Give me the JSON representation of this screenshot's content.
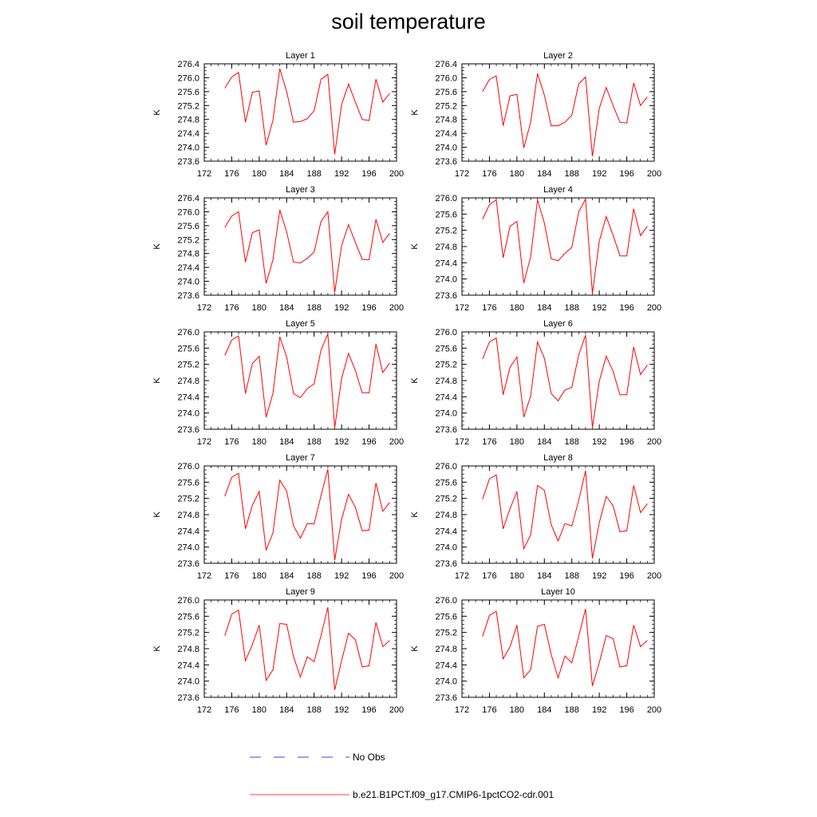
{
  "title": "soil temperature",
  "legend": [
    {
      "label": "No Obs",
      "color": "#0000ff",
      "style": "dashed"
    },
    {
      "label": "b.e21.B1PCT.f09_g17.CMIP6-1pctCO2-cdr.001",
      "color": "#ff0000",
      "style": "solid"
    }
  ],
  "chart_data": [
    {
      "type": "line",
      "title": "Layer 1",
      "ylabel": "K",
      "xlim": [
        172,
        200
      ],
      "ylim": [
        273.6,
        276.4
      ],
      "xticks": [
        172,
        176,
        180,
        184,
        188,
        192,
        196,
        200
      ],
      "yticks": [
        "273.6",
        "274.0",
        "274.4",
        "274.8",
        "275.2",
        "275.6",
        "276.0",
        "276.4"
      ],
      "series": [
        {
          "color": "#ff0000",
          "x": [
            175,
            176,
            177,
            178,
            179,
            180,
            181,
            182,
            183,
            184,
            185,
            186,
            187,
            188,
            189,
            190,
            191,
            192,
            193,
            194,
            195,
            196,
            197,
            198,
            199
          ],
          "values": [
            275.7,
            276.02,
            276.15,
            274.72,
            275.58,
            275.62,
            274.06,
            274.78,
            276.26,
            275.6,
            274.72,
            274.74,
            274.82,
            275.05,
            275.95,
            276.1,
            273.8,
            275.22,
            275.82,
            275.3,
            274.8,
            274.77,
            275.96,
            275.3,
            275.55
          ]
        }
      ]
    },
    {
      "type": "line",
      "title": "Layer 2",
      "ylabel": "K",
      "xlim": [
        172,
        200
      ],
      "ylim": [
        273.6,
        276.4
      ],
      "xticks": [
        172,
        176,
        180,
        184,
        188,
        192,
        196,
        200
      ],
      "yticks": [
        "273.6",
        "274.0",
        "274.4",
        "274.8",
        "275.2",
        "275.6",
        "276.0",
        "276.4"
      ],
      "series": [
        {
          "color": "#ff0000",
          "x": [
            175,
            176,
            177,
            178,
            179,
            180,
            181,
            182,
            183,
            184,
            185,
            186,
            187,
            188,
            189,
            190,
            191,
            192,
            193,
            194,
            195,
            196,
            197,
            198,
            199
          ],
          "values": [
            275.6,
            275.95,
            276.05,
            274.62,
            275.48,
            275.52,
            273.98,
            274.72,
            276.12,
            275.5,
            274.62,
            274.62,
            274.72,
            274.92,
            275.82,
            276.02,
            273.74,
            275.12,
            275.72,
            275.2,
            274.72,
            274.7,
            275.85,
            275.2,
            275.45
          ]
        }
      ]
    },
    {
      "type": "line",
      "title": "Layer 3",
      "ylabel": "K",
      "xlim": [
        172,
        200
      ],
      "ylim": [
        273.6,
        276.4
      ],
      "xticks": [
        172,
        176,
        180,
        184,
        188,
        192,
        196,
        200
      ],
      "yticks": [
        "273.6",
        "274.0",
        "274.4",
        "274.8",
        "275.2",
        "275.6",
        "276.0",
        "276.4"
      ],
      "series": [
        {
          "color": "#ff0000",
          "x": [
            175,
            176,
            177,
            178,
            179,
            180,
            181,
            182,
            183,
            184,
            185,
            186,
            187,
            188,
            189,
            190,
            191,
            192,
            193,
            194,
            195,
            196,
            197,
            198,
            199
          ],
          "values": [
            275.55,
            275.88,
            276.0,
            274.55,
            275.4,
            275.48,
            273.94,
            274.62,
            276.05,
            275.42,
            274.55,
            274.53,
            274.66,
            274.84,
            275.72,
            276.0,
            273.68,
            275.02,
            275.63,
            275.12,
            274.63,
            274.62,
            275.78,
            275.12,
            275.38
          ]
        }
      ]
    },
    {
      "type": "line",
      "title": "Layer 4",
      "ylabel": "K",
      "xlim": [
        172,
        200
      ],
      "ylim": [
        273.6,
        276.0
      ],
      "xticks": [
        172,
        176,
        180,
        184,
        188,
        192,
        196,
        200
      ],
      "yticks": [
        "273.6",
        "274.0",
        "274.4",
        "274.8",
        "275.2",
        "275.6",
        "276.0"
      ],
      "series": [
        {
          "color": "#ff0000",
          "x": [
            175,
            176,
            177,
            178,
            179,
            180,
            181,
            182,
            183,
            184,
            185,
            186,
            187,
            188,
            189,
            190,
            191,
            192,
            193,
            194,
            195,
            196,
            197,
            198,
            199
          ],
          "values": [
            275.47,
            275.83,
            275.95,
            274.52,
            275.3,
            275.42,
            273.9,
            274.55,
            275.95,
            275.38,
            274.5,
            274.45,
            274.63,
            274.78,
            275.65,
            275.97,
            273.64,
            274.93,
            275.54,
            275.08,
            274.57,
            274.57,
            275.73,
            275.07,
            275.3
          ]
        }
      ]
    },
    {
      "type": "line",
      "title": "Layer 5",
      "ylabel": "K",
      "xlim": [
        172,
        200
      ],
      "ylim": [
        273.6,
        276.0
      ],
      "xticks": [
        172,
        176,
        180,
        184,
        188,
        192,
        196,
        200
      ],
      "yticks": [
        "273.6",
        "274.0",
        "274.4",
        "274.8",
        "275.2",
        "275.6",
        "276.0"
      ],
      "series": [
        {
          "color": "#ff0000",
          "x": [
            175,
            176,
            177,
            178,
            179,
            180,
            181,
            182,
            183,
            184,
            185,
            186,
            187,
            188,
            189,
            190,
            191,
            192,
            193,
            194,
            195,
            196,
            197,
            198,
            199
          ],
          "values": [
            275.42,
            275.8,
            275.9,
            274.48,
            275.22,
            275.4,
            273.9,
            274.48,
            275.88,
            275.38,
            274.48,
            274.38,
            274.6,
            274.72,
            275.55,
            275.95,
            273.64,
            274.85,
            275.47,
            275.05,
            274.5,
            274.5,
            275.7,
            275.0,
            275.23
          ]
        }
      ]
    },
    {
      "type": "line",
      "title": "Layer 6",
      "ylabel": "K",
      "xlim": [
        172,
        200
      ],
      "ylim": [
        273.6,
        276.0
      ],
      "xticks": [
        172,
        176,
        180,
        184,
        188,
        192,
        196,
        200
      ],
      "yticks": [
        "273.6",
        "274.0",
        "274.4",
        "274.8",
        "275.2",
        "275.6",
        "276.0"
      ],
      "series": [
        {
          "color": "#ff0000",
          "x": [
            175,
            176,
            177,
            178,
            179,
            180,
            181,
            182,
            183,
            184,
            185,
            186,
            187,
            188,
            189,
            190,
            191,
            192,
            193,
            194,
            195,
            196,
            197,
            198,
            199
          ],
          "values": [
            275.33,
            275.75,
            275.85,
            274.45,
            275.13,
            275.38,
            273.9,
            274.42,
            275.75,
            275.35,
            274.48,
            274.3,
            274.57,
            274.63,
            275.43,
            275.92,
            273.64,
            274.78,
            275.4,
            275.03,
            274.45,
            274.45,
            275.63,
            274.95,
            275.18
          ]
        }
      ]
    },
    {
      "type": "line",
      "title": "Layer 7",
      "ylabel": "K",
      "xlim": [
        172,
        200
      ],
      "ylim": [
        273.6,
        276.0
      ],
      "xticks": [
        172,
        176,
        180,
        184,
        188,
        192,
        196,
        200
      ],
      "yticks": [
        "273.6",
        "274.0",
        "274.4",
        "274.8",
        "275.2",
        "275.6",
        "276.0"
      ],
      "series": [
        {
          "color": "#ff0000",
          "x": [
            175,
            176,
            177,
            178,
            179,
            180,
            181,
            182,
            183,
            184,
            185,
            186,
            187,
            188,
            189,
            190,
            191,
            192,
            193,
            194,
            195,
            196,
            197,
            198,
            199
          ],
          "values": [
            275.25,
            275.72,
            275.82,
            274.45,
            275.03,
            275.37,
            273.92,
            274.35,
            275.65,
            275.38,
            274.52,
            274.22,
            274.58,
            274.57,
            275.27,
            275.92,
            273.68,
            274.68,
            275.3,
            274.98,
            274.4,
            274.42,
            275.58,
            274.88,
            275.1
          ]
        }
      ]
    },
    {
      "type": "line",
      "title": "Layer 8",
      "ylabel": "K",
      "xlim": [
        172,
        200
      ],
      "ylim": [
        273.6,
        276.0
      ],
      "xticks": [
        172,
        176,
        180,
        184,
        188,
        192,
        196,
        200
      ],
      "yticks": [
        "273.6",
        "274.0",
        "274.4",
        "274.8",
        "275.2",
        "275.6",
        "276.0"
      ],
      "series": [
        {
          "color": "#ff0000",
          "x": [
            175,
            176,
            177,
            178,
            179,
            180,
            181,
            182,
            183,
            184,
            185,
            186,
            187,
            188,
            189,
            190,
            191,
            192,
            193,
            194,
            195,
            196,
            197,
            198,
            199
          ],
          "values": [
            275.18,
            275.68,
            275.78,
            274.45,
            274.95,
            275.37,
            273.96,
            274.3,
            275.52,
            275.4,
            274.55,
            274.15,
            274.58,
            274.52,
            275.15,
            275.88,
            273.72,
            274.6,
            275.25,
            275.02,
            274.38,
            274.4,
            275.52,
            274.85,
            275.07
          ]
        }
      ]
    },
    {
      "type": "line",
      "title": "Layer 9",
      "ylabel": "K",
      "xlim": [
        172,
        200
      ],
      "ylim": [
        273.6,
        276.0
      ],
      "xticks": [
        172,
        176,
        180,
        184,
        188,
        192,
        196,
        200
      ],
      "yticks": [
        "273.6",
        "274.0",
        "274.4",
        "274.8",
        "275.2",
        "275.6",
        "276.0"
      ],
      "series": [
        {
          "color": "#ff0000",
          "x": [
            175,
            176,
            177,
            178,
            179,
            180,
            181,
            182,
            183,
            184,
            185,
            186,
            187,
            188,
            189,
            190,
            191,
            192,
            193,
            194,
            195,
            196,
            197,
            198,
            199
          ],
          "values": [
            275.12,
            275.65,
            275.75,
            274.5,
            274.9,
            275.38,
            274.02,
            274.28,
            275.42,
            275.4,
            274.6,
            274.1,
            274.6,
            274.48,
            275.12,
            275.82,
            273.78,
            274.5,
            275.18,
            275.02,
            274.35,
            274.38,
            275.45,
            274.85,
            275.0
          ]
        }
      ]
    },
    {
      "type": "line",
      "title": "Layer 10",
      "ylabel": "K",
      "xlim": [
        172,
        200
      ],
      "ylim": [
        273.6,
        276.0
      ],
      "xticks": [
        172,
        176,
        180,
        184,
        188,
        192,
        196,
        200
      ],
      "yticks": [
        "273.6",
        "274.0",
        "274.4",
        "274.8",
        "275.2",
        "275.6",
        "276.0"
      ],
      "series": [
        {
          "color": "#ff0000",
          "x": [
            175,
            176,
            177,
            178,
            179,
            180,
            181,
            182,
            183,
            184,
            185,
            186,
            187,
            188,
            189,
            190,
            191,
            192,
            193,
            194,
            195,
            196,
            197,
            198,
            199
          ],
          "values": [
            275.1,
            275.62,
            275.72,
            274.55,
            274.85,
            275.38,
            274.08,
            274.28,
            275.35,
            275.4,
            274.65,
            274.08,
            274.62,
            274.45,
            275.1,
            275.78,
            273.88,
            274.45,
            275.12,
            275.05,
            274.35,
            274.38,
            275.38,
            274.85,
            275.0
          ]
        }
      ]
    }
  ]
}
